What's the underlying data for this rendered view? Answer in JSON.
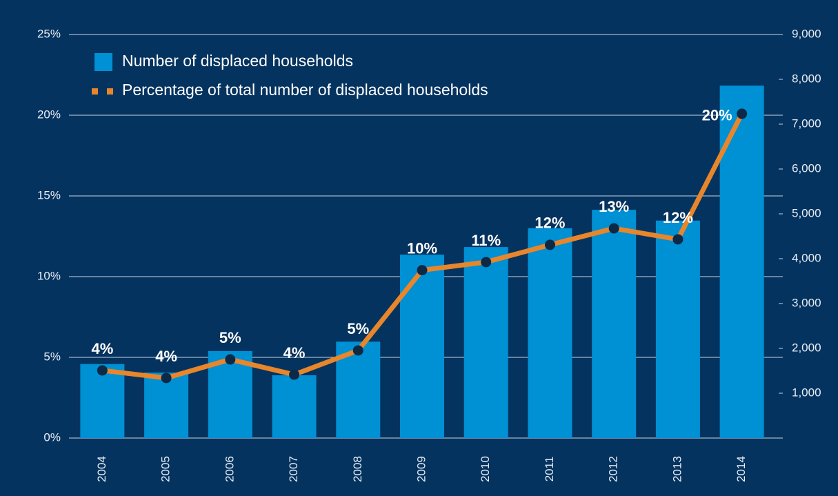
{
  "chart_data": {
    "type": "bar",
    "categories": [
      "2004",
      "2005",
      "2006",
      "2007",
      "2008",
      "2009",
      "2010",
      "2011",
      "2012",
      "2013",
      "2014"
    ],
    "series": [
      {
        "name": "Number of displaced households",
        "type": "bar",
        "axis": "y2",
        "color": "#0090d4",
        "values": [
          1650,
          1460,
          1940,
          1400,
          2150,
          4090,
          4260,
          4680,
          5090,
          4850,
          7860
        ]
      },
      {
        "name": "Percentage of total number of displaced households",
        "type": "line",
        "axis": "y",
        "color": "#e8862b",
        "values": [
          4.19,
          3.72,
          4.87,
          3.93,
          5.43,
          10.4,
          10.9,
          11.97,
          12.99,
          12.31,
          20.09
        ],
        "value_labels": [
          "4%",
          "4%",
          "5%",
          "4%",
          "5%",
          "10%",
          "11%",
          "12%",
          "13%",
          "12%",
          "20%"
        ]
      }
    ],
    "ylim": [
      0,
      25
    ],
    "yticks": [
      {
        "value": 0,
        "label": "0%"
      },
      {
        "value": 5,
        "label": "5%"
      },
      {
        "value": 10,
        "label": "10%"
      },
      {
        "value": 15,
        "label": "15%"
      },
      {
        "value": 20,
        "label": "20%"
      },
      {
        "value": 25,
        "label": "25%"
      }
    ],
    "y2lim": [
      0,
      9000
    ],
    "y2ticks": [
      {
        "value": 1000,
        "label": "1,000"
      },
      {
        "value": 2000,
        "label": "2,000"
      },
      {
        "value": 3000,
        "label": "3,000"
      },
      {
        "value": 4000,
        "label": "4,000"
      },
      {
        "value": 5000,
        "label": "5,000"
      },
      {
        "value": 6000,
        "label": "6,000"
      },
      {
        "value": 7000,
        "label": "7,000"
      },
      {
        "value": 8000,
        "label": "8,000"
      },
      {
        "value": 9000,
        "label": "9,000"
      }
    ],
    "grid": true,
    "legend": "top-left"
  }
}
